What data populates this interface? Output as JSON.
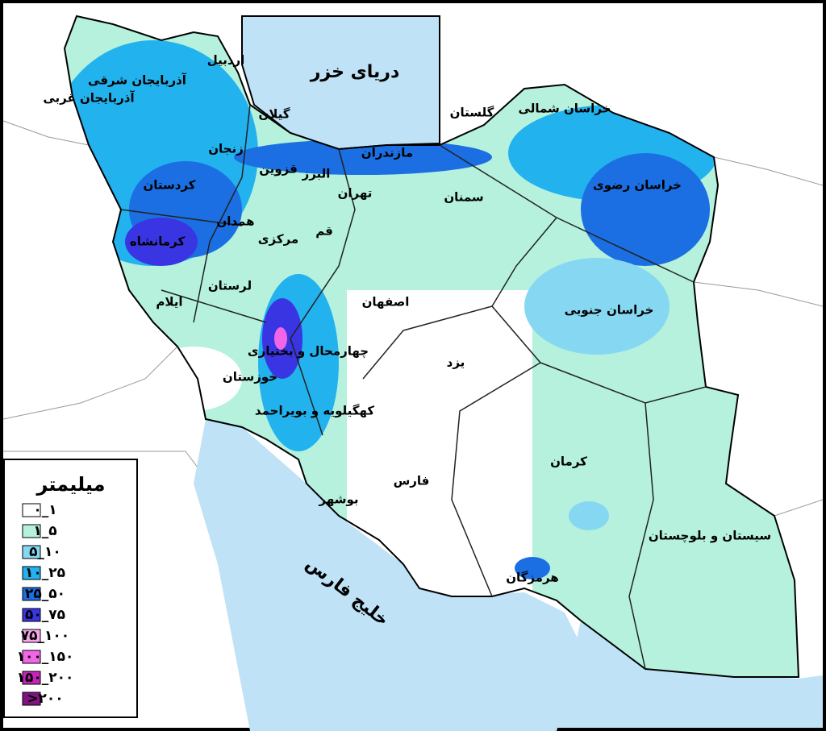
{
  "map": {
    "seas": [
      {
        "label": "دریای خزر"
      },
      {
        "label": "خلیج فارس"
      }
    ],
    "provinces": [
      {
        "label": "اردبیل"
      },
      {
        "label": "آذربایجان شرقی"
      },
      {
        "label": "آذربایجان غربی"
      },
      {
        "label": "گیلان"
      },
      {
        "label": "زنجان"
      },
      {
        "label": "مازندران"
      },
      {
        "label": "گلستان"
      },
      {
        "label": "خراسان شمالی"
      },
      {
        "label": "خراسان رضوی"
      },
      {
        "label": "قزوین"
      },
      {
        "label": "البرز"
      },
      {
        "label": "تهران"
      },
      {
        "label": "سمنان"
      },
      {
        "label": "کردستان"
      },
      {
        "label": "همدان"
      },
      {
        "label": "قم"
      },
      {
        "label": "مرکزی"
      },
      {
        "label": "کرمانشاه"
      },
      {
        "label": "لرستان"
      },
      {
        "label": "ایلام"
      },
      {
        "label": "اصفهان"
      },
      {
        "label": "خراسان جنوبی"
      },
      {
        "label": "چهارمحال و بختیاری"
      },
      {
        "label": "یزد"
      },
      {
        "label": "خوزستان"
      },
      {
        "label": "کهگیلویه و بویراحمد"
      },
      {
        "label": "کرمان"
      },
      {
        "label": "فارس"
      },
      {
        "label": "بوشهر"
      },
      {
        "label": "سیستان و بلوچستان"
      },
      {
        "label": "هرمزگان"
      }
    ],
    "legend": {
      "title": "میلیمتر",
      "entries": [
        {
          "label": "۰_۱",
          "color": "#ffffff"
        },
        {
          "label": "۱_۵",
          "color": "#b5f1dd"
        },
        {
          "label": "۵_۱۰",
          "color": "#86d8f2"
        },
        {
          "label": "۱۰_۲۵",
          "color": "#22b2ee"
        },
        {
          "label": "۲۵_۵۰",
          "color": "#1b6fe2"
        },
        {
          "label": "۵۰_۷۵",
          "color": "#3a35e2"
        },
        {
          "label": "۷۵_۱۰۰",
          "color": "#f7a6ec"
        },
        {
          "label": "۱۰۰_۱۵۰",
          "color": "#f066e6"
        },
        {
          "label": "۱۵۰_۲۰۰",
          "color": "#c524b8"
        },
        {
          "label": ">۲۰۰",
          "color": "#801380"
        }
      ]
    }
  }
}
